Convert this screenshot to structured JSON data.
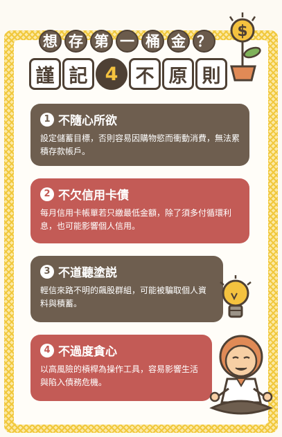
{
  "title": {
    "line1": [
      "想",
      "存",
      "第",
      "一",
      "桶",
      "金",
      "？"
    ],
    "line2": [
      "謹",
      "記",
      "4",
      "不",
      "原",
      "則"
    ]
  },
  "cards": [
    {
      "number": "1",
      "title": "不隨心所欲",
      "body": "設定儲蓄目標，否則容易因購物慾而衝動消費，無法累積存款帳戶。"
    },
    {
      "number": "2",
      "title": "不欠信用卡債",
      "body": "每月信用卡帳單若只繳最低金額，除了須多付循環利息，也可能影響個人信用。"
    },
    {
      "number": "3",
      "title": "不道聽塗説",
      "body": "輕信來路不明的飆股群組，可能被騙取個人資料與積蓄。"
    },
    {
      "number": "4",
      "title": "不過度貪心",
      "body": "以高風險的槓桿為操作工具，容易影響生活與陷入債務危機。"
    }
  ],
  "colors": {
    "brown": "#6e5e4f",
    "red": "#c35b56",
    "yellow": "#f4c23f"
  },
  "icons": [
    "money-plant-icon",
    "light-bulb-icon",
    "meditating-person-illustration"
  ]
}
